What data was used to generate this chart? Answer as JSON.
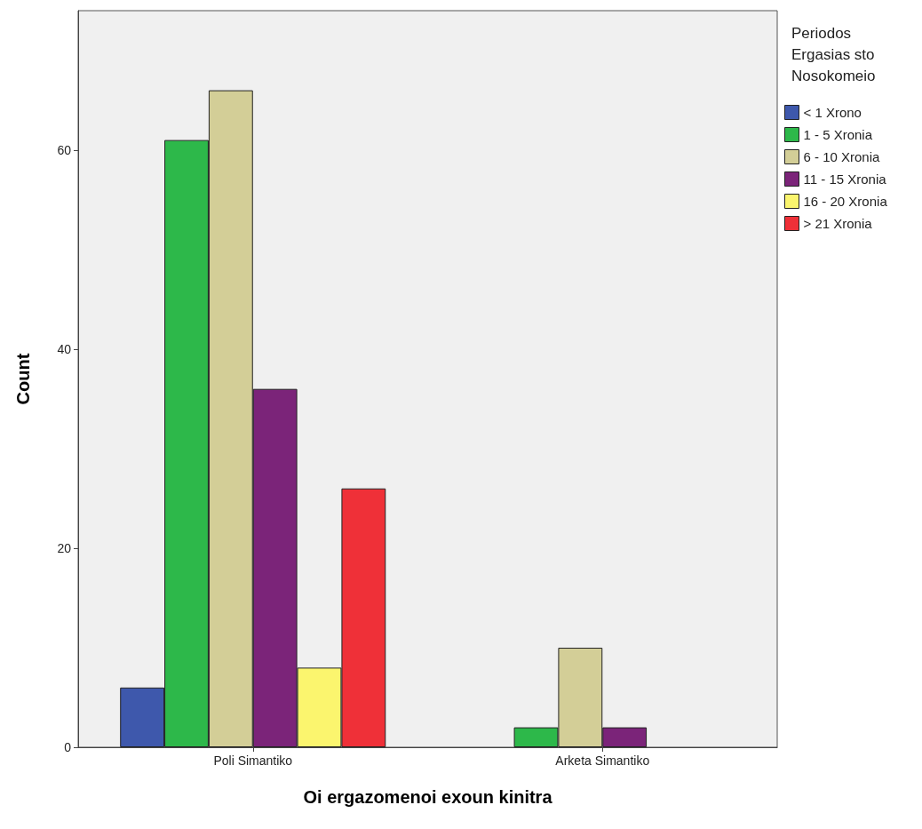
{
  "chart_data": {
    "type": "bar",
    "xlabel": "Oi ergazomenoi exoun kinitra",
    "ylabel": "Count",
    "legend_title": "Periodos\nErgasias sto\nNosokomeio",
    "categories": [
      "Poli Simantiko",
      "Arketa Simantiko"
    ],
    "series": [
      {
        "name": "< 1 Xrono",
        "color": "#3e58ac",
        "values": [
          6,
          null
        ]
      },
      {
        "name": "1 - 5 Xronia",
        "color": "#2db84a",
        "values": [
          61,
          2
        ]
      },
      {
        "name": "6 - 10 Xronia",
        "color": "#d3ce97",
        "values": [
          66,
          10
        ]
      },
      {
        "name": "11 - 15 Xronia",
        "color": "#7b2479",
        "values": [
          36,
          2
        ]
      },
      {
        "name": "16 - 20 Xronia",
        "color": "#fbf56e",
        "values": [
          8,
          null
        ]
      },
      {
        "name": "> 21 Xronia",
        "color": "#ef3038",
        "values": [
          26,
          null
        ]
      }
    ],
    "ylim": [
      0,
      74
    ],
    "yticks": [
      0,
      20,
      40,
      60
    ],
    "grid": false,
    "legend": "top right"
  }
}
